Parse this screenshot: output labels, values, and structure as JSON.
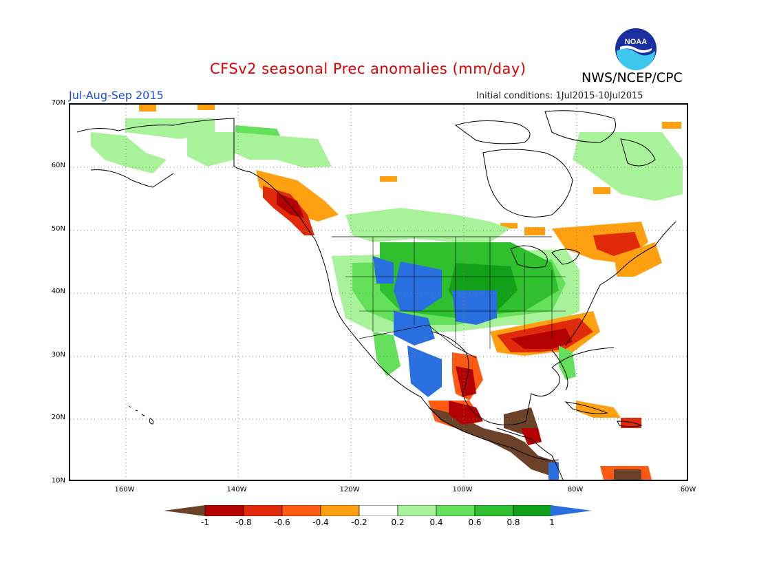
{
  "header": {
    "title": "CFSv2 seasonal Prec anomalies (mm/day)",
    "season": "Jul-Aug-Sep 2015",
    "initial_conditions": "Initial conditions: 1Jul2015-10Jul2015",
    "organization": "NWS/NCEP/CPC",
    "logo_text": "NOAA"
  },
  "axes": {
    "y_ticks": [
      "70N",
      "60N",
      "50N",
      "40N",
      "30N",
      "20N",
      "10N"
    ],
    "x_ticks": [
      "160W",
      "140W",
      "120W",
      "100W",
      "80W",
      "60W"
    ]
  },
  "colorbar": {
    "labels": [
      "-1",
      "-0.8",
      "-0.6",
      "-0.4",
      "-0.2",
      "0.2",
      "0.4",
      "0.6",
      "0.8",
      "1"
    ],
    "colors": [
      "#6b4228",
      "#b30000",
      "#e02a0a",
      "#ff5a14",
      "#ffa010",
      "#ffffff",
      "#a8f29a",
      "#64e05a",
      "#2fbf2f",
      "#12a01a",
      "#2a6fe0"
    ]
  },
  "anomaly_colors": {
    "strong_dry": "#6b4228",
    "dry_08": "#b30000",
    "dry_06": "#e02a0a",
    "dry_04": "#ff5a14",
    "dry_02": "#ffa010",
    "wet_02": "#a8f29a",
    "wet_04": "#64e05a",
    "wet_06": "#2fbf2f",
    "wet_08": "#12a01a",
    "strong_wet": "#2a6fe0"
  }
}
